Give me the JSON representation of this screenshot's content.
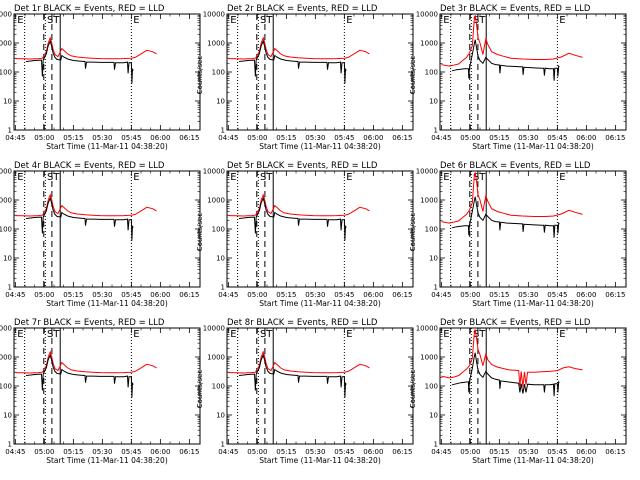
{
  "chart_data": {
    "type": "line",
    "grid": false,
    "y_scale": "log",
    "ylim": [
      1,
      10000
    ],
    "x_ticks": [
      "04:45",
      "05:00",
      "05:15",
      "05:30",
      "05:45",
      "06:00",
      "06:15"
    ],
    "y_ticks": [
      "1",
      "10",
      "100",
      "1000",
      "10000"
    ],
    "ylabel": "Counts/sec",
    "xlabel": "Start Time (11-Mar-11 04:38:20)",
    "colors": {
      "events": "#000000",
      "lld": "#ff0000"
    },
    "panels": [
      {
        "title": "Det 1r BLACK = Events, RED = LLD",
        "profile": "front",
        "flags": [
          "E",
          "S",
          "T",
          "E"
        ]
      },
      {
        "title": "Det 2r BLACK = Events, RED = LLD",
        "profile": "front",
        "flags": [
          "E",
          "S",
          "T",
          "E"
        ]
      },
      {
        "title": "Det 3r BLACK = Events, RED = LLD",
        "profile": "rear",
        "flags": [
          "E",
          "S",
          "T",
          "E"
        ]
      },
      {
        "title": "Det 4r BLACK = Events, RED = LLD",
        "profile": "front",
        "flags": [
          "E",
          "S",
          "T",
          "E"
        ]
      },
      {
        "title": "Det 5r BLACK = Events, RED = LLD",
        "profile": "front",
        "flags": [
          "E",
          "S",
          "T",
          "E"
        ]
      },
      {
        "title": "Det 6r BLACK = Events, RED = LLD",
        "profile": "rear",
        "flags": [
          "E",
          "S",
          "T",
          "E"
        ]
      },
      {
        "title": "Det 7r BLACK = Events, RED = LLD",
        "profile": "front",
        "flags": [
          "E",
          "S",
          "T",
          "E"
        ]
      },
      {
        "title": "Det 8r BLACK = Events, RED = LLD",
        "profile": "front",
        "flags": [
          "E",
          "S",
          "T",
          "E"
        ]
      },
      {
        "title": "Det 9r BLACK = Events, RED = LLD",
        "profile": "rear9",
        "flags": [
          "E",
          "S",
          "T",
          "E"
        ]
      }
    ],
    "markers": {
      "dotted_minutes": [
        4.8,
        15.5,
        60.0
      ],
      "dashed_minutes": [
        14.7,
        18.9
      ],
      "solid_minutes": [
        23.2
      ]
    },
    "series": {
      "front": {
        "lld": [
          [
            0,
            290
          ],
          [
            4,
            285
          ],
          [
            8,
            280
          ],
          [
            10,
            285
          ],
          [
            12,
            290
          ],
          [
            14,
            300
          ],
          [
            16,
            500
          ],
          [
            17,
            1000
          ],
          [
            18,
            1500
          ],
          [
            18.7,
            1100
          ],
          [
            19.5,
            600
          ],
          [
            20.5,
            400
          ],
          [
            22,
            340
          ],
          [
            23,
            460
          ],
          [
            24,
            640
          ],
          [
            25,
            560
          ],
          [
            27,
            420
          ],
          [
            29,
            360
          ],
          [
            32,
            330
          ],
          [
            36,
            310
          ],
          [
            40,
            300
          ],
          [
            44,
            290
          ],
          [
            48,
            285
          ],
          [
            52,
            285
          ],
          [
            56,
            290
          ],
          [
            60,
            300
          ],
          [
            62,
            320
          ],
          [
            65,
            420
          ],
          [
            68,
            560
          ],
          [
            71,
            500
          ],
          [
            73,
            420
          ]
        ],
        "events": [
          [
            5.5,
            230
          ],
          [
            8,
            240
          ],
          [
            10,
            250
          ],
          [
            12,
            255
          ],
          [
            13.5,
            258
          ],
          [
            14,
            70
          ],
          [
            14.4,
            260
          ],
          [
            16,
            420
          ],
          [
            17,
            800
          ],
          [
            18,
            1150
          ],
          [
            18.7,
            800
          ],
          [
            19.5,
            450
          ],
          [
            20.5,
            320
          ],
          [
            21.6,
            270
          ],
          [
            23.5,
            260
          ],
          [
            24,
            370
          ],
          [
            25,
            330
          ],
          [
            27,
            280
          ],
          [
            30,
            250
          ],
          [
            34,
            235
          ],
          [
            36,
            230
          ],
          [
            36.3,
            130
          ],
          [
            36.8,
            220
          ],
          [
            40,
            220
          ],
          [
            44,
            215
          ],
          [
            48,
            215
          ],
          [
            51,
            215
          ],
          [
            51.3,
            120
          ],
          [
            51.8,
            210
          ],
          [
            56,
            210
          ],
          [
            58,
            220
          ],
          [
            58.3,
            90
          ],
          [
            58.8,
            210
          ],
          [
            60,
            210
          ],
          [
            60.3,
            40
          ],
          [
            60.6,
            130
          ],
          [
            60.9,
            110
          ]
        ]
      },
      "rear": {
        "lld": [
          [
            0,
            180
          ],
          [
            4,
            160
          ],
          [
            6,
            170
          ],
          [
            9,
            190
          ],
          [
            11,
            250
          ],
          [
            13,
            320
          ],
          [
            14.5,
            450
          ],
          [
            16,
            800
          ],
          [
            17,
            6000
          ],
          [
            17.5,
            9000
          ],
          [
            18.2,
            4500
          ],
          [
            19,
            1500
          ],
          [
            20,
            1000
          ],
          [
            21.5,
            400
          ],
          [
            23,
            1400
          ],
          [
            24,
            900
          ],
          [
            26,
            500
          ],
          [
            29,
            400
          ],
          [
            32,
            350
          ],
          [
            36,
            300
          ],
          [
            42,
            280
          ],
          [
            48,
            270
          ],
          [
            54,
            270
          ],
          [
            58,
            280
          ],
          [
            62,
            330
          ],
          [
            66,
            440
          ],
          [
            69,
            380
          ],
          [
            73,
            320
          ]
        ],
        "events": [
          [
            5.5,
            110
          ],
          [
            8,
            120
          ],
          [
            10,
            125
          ],
          [
            12,
            130
          ],
          [
            14,
            130
          ],
          [
            14.2,
            60
          ],
          [
            14.5,
            130
          ],
          [
            16,
            400
          ],
          [
            17,
            900
          ],
          [
            17.5,
            1300
          ],
          [
            18.2,
            700
          ],
          [
            19,
            350
          ],
          [
            20,
            250
          ],
          [
            21.5,
            200
          ],
          [
            23,
            320
          ],
          [
            24,
            270
          ],
          [
            26,
            200
          ],
          [
            28,
            180
          ],
          [
            30,
            175
          ],
          [
            30.3,
            90
          ],
          [
            30.7,
            170
          ],
          [
            34,
            160
          ],
          [
            38,
            155
          ],
          [
            42,
            150
          ],
          [
            42.3,
            80
          ],
          [
            42.7,
            145
          ],
          [
            47,
            140
          ],
          [
            52,
            135
          ],
          [
            53,
            135
          ],
          [
            53.3,
            75
          ],
          [
            53.7,
            135
          ],
          [
            56,
            130
          ],
          [
            58,
            130
          ],
          [
            58.3,
            50
          ],
          [
            58.7,
            135
          ],
          [
            60,
            135
          ],
          [
            60.3,
            70
          ],
          [
            60.7,
            160
          ],
          [
            61,
            150
          ]
        ]
      },
      "rear9": {
        "lld": [
          [
            0,
            220
          ],
          [
            4,
            190
          ],
          [
            6,
            200
          ],
          [
            9,
            230
          ],
          [
            11,
            300
          ],
          [
            13,
            380
          ],
          [
            14.5,
            500
          ],
          [
            16,
            900
          ],
          [
            17,
            6000
          ],
          [
            17.5,
            9000
          ],
          [
            18.2,
            4500
          ],
          [
            19,
            1800
          ],
          [
            20,
            1200
          ],
          [
            21.5,
            500
          ],
          [
            23,
            1300
          ],
          [
            24,
            800
          ],
          [
            26,
            550
          ],
          [
            29,
            450
          ],
          [
            32,
            400
          ],
          [
            35,
            360
          ],
          [
            38,
            350
          ],
          [
            40,
            340
          ],
          [
            40.6,
            100
          ],
          [
            41.3,
            320
          ],
          [
            42.2,
            95
          ],
          [
            43,
            310
          ],
          [
            43.8,
            110
          ],
          [
            44.6,
            300
          ],
          [
            48,
            300
          ],
          [
            52,
            310
          ],
          [
            56,
            320
          ],
          [
            60,
            340
          ],
          [
            63,
            420
          ],
          [
            66,
            460
          ],
          [
            69,
            400
          ],
          [
            73,
            360
          ]
        ],
        "events": [
          [
            5.5,
            110
          ],
          [
            8,
            120
          ],
          [
            10,
            130
          ],
          [
            12,
            135
          ],
          [
            14,
            140
          ],
          [
            14.2,
            60
          ],
          [
            14.5,
            140
          ],
          [
            16,
            400
          ],
          [
            17,
            1000
          ],
          [
            17.5,
            1400
          ],
          [
            18.2,
            700
          ],
          [
            19,
            350
          ],
          [
            20,
            250
          ],
          [
            21.5,
            200
          ],
          [
            23,
            320
          ],
          [
            24,
            260
          ],
          [
            26,
            190
          ],
          [
            28,
            170
          ],
          [
            30,
            160
          ],
          [
            30.3,
            80
          ],
          [
            30.7,
            150
          ],
          [
            34,
            140
          ],
          [
            38,
            130
          ],
          [
            40,
            125
          ],
          [
            40.6,
            60
          ],
          [
            41.3,
            120
          ],
          [
            42.2,
            55
          ],
          [
            43,
            115
          ],
          [
            43.8,
            60
          ],
          [
            44.6,
            115
          ],
          [
            48,
            110
          ],
          [
            52,
            110
          ],
          [
            53,
            110
          ],
          [
            53.3,
            60
          ],
          [
            53.7,
            110
          ],
          [
            56,
            110
          ],
          [
            58,
            115
          ],
          [
            58.3,
            45
          ],
          [
            58.7,
            120
          ],
          [
            60,
            120
          ],
          [
            60.3,
            60
          ],
          [
            60.7,
            140
          ],
          [
            61,
            130
          ]
        ]
      }
    }
  }
}
